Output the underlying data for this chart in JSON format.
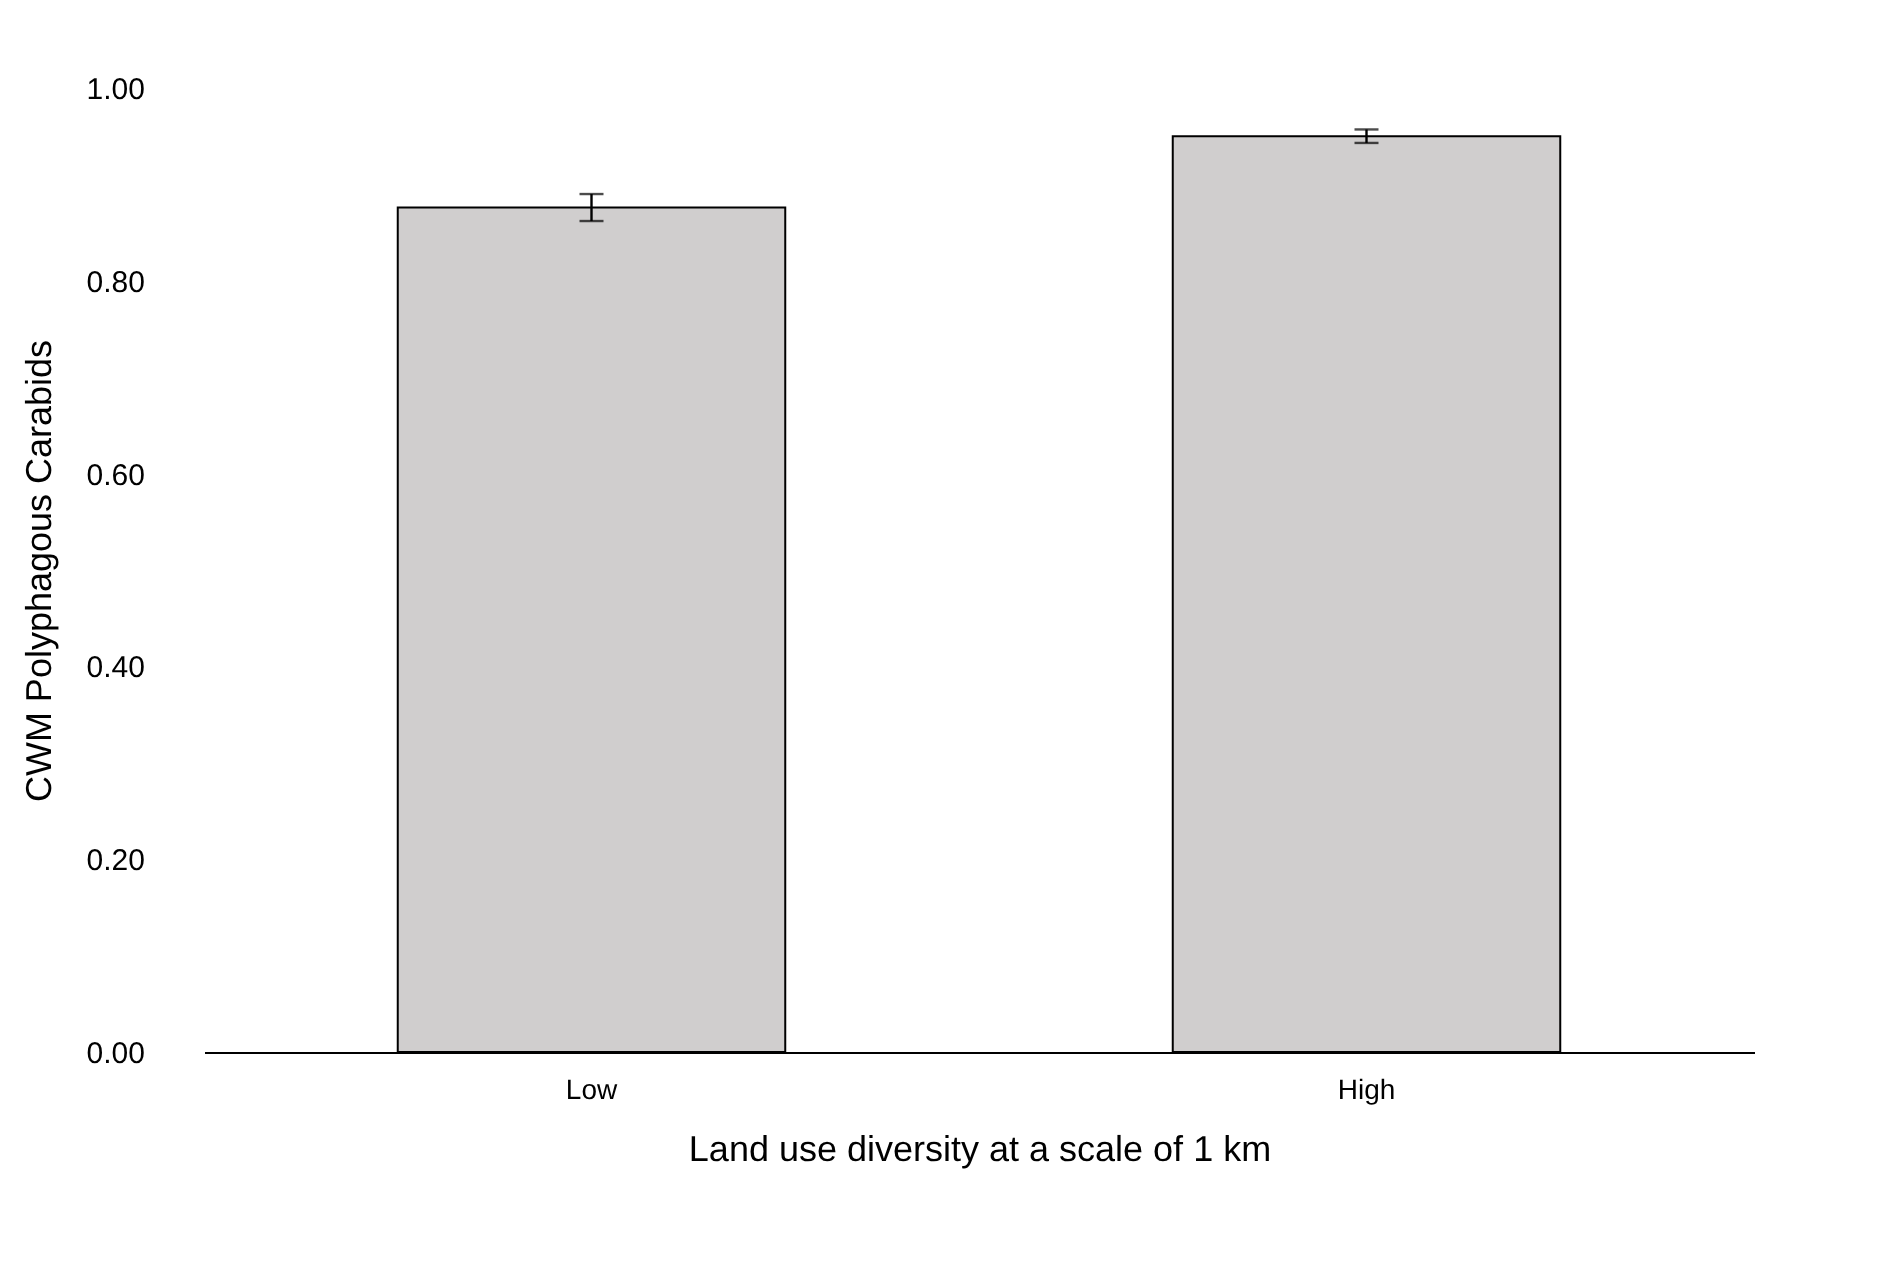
{
  "chart_data": {
    "type": "bar",
    "xlabel": "Land use diversity at a scale of 1 km",
    "ylabel": "CWM Polyphagous Carabids",
    "categories": [
      "Low",
      "High"
    ],
    "series": [
      {
        "color": "#d0cece",
        "values": [
          0.876,
          0.95
        ],
        "errors": [
          0.014,
          0.007
        ]
      }
    ],
    "ylim": [
      0,
      1
    ],
    "yticks": [
      {
        "value": 0,
        "label": "0.00"
      },
      {
        "value": 0.2,
        "label": "0.20"
      },
      {
        "value": 0.4,
        "label": "0.40"
      },
      {
        "value": 0.6,
        "label": "0.60"
      },
      {
        "value": 0.8,
        "label": "0.80"
      },
      {
        "value": 1,
        "label": "1.00"
      }
    ],
    "grid": false
  }
}
